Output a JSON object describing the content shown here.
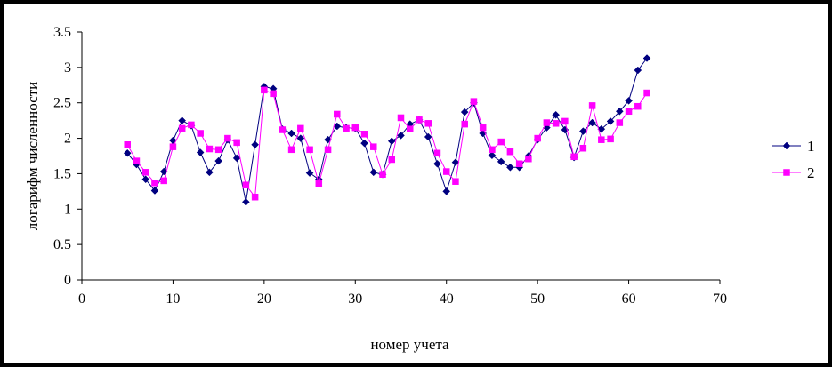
{
  "chart_data": {
    "type": "line",
    "title": "",
    "xlabel": "номер учета",
    "ylabel": "логарифм численности",
    "xlim": [
      0,
      70
    ],
    "ylim": [
      0,
      3.5
    ],
    "xticks": [
      0,
      10,
      20,
      30,
      40,
      50,
      60,
      70
    ],
    "yticks": [
      0,
      0.5,
      1,
      1.5,
      2,
      2.5,
      3,
      3.5
    ],
    "ytick_labels": [
      "0",
      "0.5",
      "1",
      "1.5",
      "2",
      "2.5",
      "3",
      "3.5"
    ],
    "grid": false,
    "legend_position": "right",
    "series": [
      {
        "name": "1",
        "color": "#000080",
        "marker": "diamond",
        "x": [
          5,
          6,
          7,
          8,
          9,
          10,
          11,
          12,
          13,
          14,
          15,
          16,
          17,
          18,
          19,
          20,
          21,
          22,
          23,
          24,
          25,
          26,
          27,
          28,
          29,
          30,
          31,
          32,
          33,
          34,
          35,
          36,
          37,
          38,
          39,
          40,
          41,
          42,
          43,
          44,
          45,
          46,
          47,
          48,
          49,
          50,
          51,
          52,
          53,
          54,
          55,
          56,
          57,
          58,
          59,
          60,
          61,
          62
        ],
        "values": [
          1.79,
          1.63,
          1.42,
          1.26,
          1.53,
          1.97,
          2.25,
          2.18,
          1.8,
          1.52,
          1.68,
          1.98,
          1.72,
          1.1,
          1.91,
          2.73,
          2.7,
          2.13,
          2.07,
          2.0,
          1.51,
          1.42,
          1.98,
          2.17,
          2.15,
          2.14,
          1.93,
          1.52,
          1.49,
          1.96,
          2.04,
          2.2,
          2.26,
          2.02,
          1.64,
          1.25,
          1.66,
          2.37,
          2.5,
          2.07,
          1.76,
          1.67,
          1.59,
          1.59,
          1.75,
          1.98,
          2.15,
          2.33,
          2.12,
          1.73,
          2.1,
          2.22,
          2.13,
          2.24,
          2.38,
          2.53,
          2.96,
          3.13
        ]
      },
      {
        "name": "2",
        "color": "#FF00FF",
        "marker": "square",
        "x": [
          5,
          6,
          7,
          8,
          9,
          10,
          11,
          12,
          13,
          14,
          15,
          16,
          17,
          18,
          19,
          20,
          21,
          22,
          23,
          24,
          25,
          26,
          27,
          28,
          29,
          30,
          31,
          32,
          33,
          34,
          35,
          36,
          37,
          38,
          39,
          40,
          41,
          42,
          43,
          44,
          45,
          46,
          47,
          48,
          49,
          50,
          51,
          52,
          53,
          54,
          55,
          56,
          57,
          58,
          59,
          60,
          61,
          62
        ],
        "values": [
          1.91,
          1.68,
          1.52,
          1.37,
          1.4,
          1.88,
          2.14,
          2.19,
          2.07,
          1.85,
          1.84,
          2.0,
          1.94,
          1.34,
          1.17,
          2.68,
          2.63,
          2.12,
          1.84,
          2.14,
          1.84,
          1.36,
          1.84,
          2.34,
          2.14,
          2.15,
          2.06,
          1.88,
          1.49,
          1.7,
          2.29,
          2.13,
          2.26,
          2.21,
          1.79,
          1.53,
          1.39,
          2.2,
          2.52,
          2.15,
          1.84,
          1.95,
          1.81,
          1.64,
          1.71,
          2.0,
          2.22,
          2.21,
          2.24,
          1.74,
          1.86,
          2.46,
          1.98,
          1.99,
          2.22,
          2.38,
          2.45,
          2.64
        ]
      }
    ]
  }
}
